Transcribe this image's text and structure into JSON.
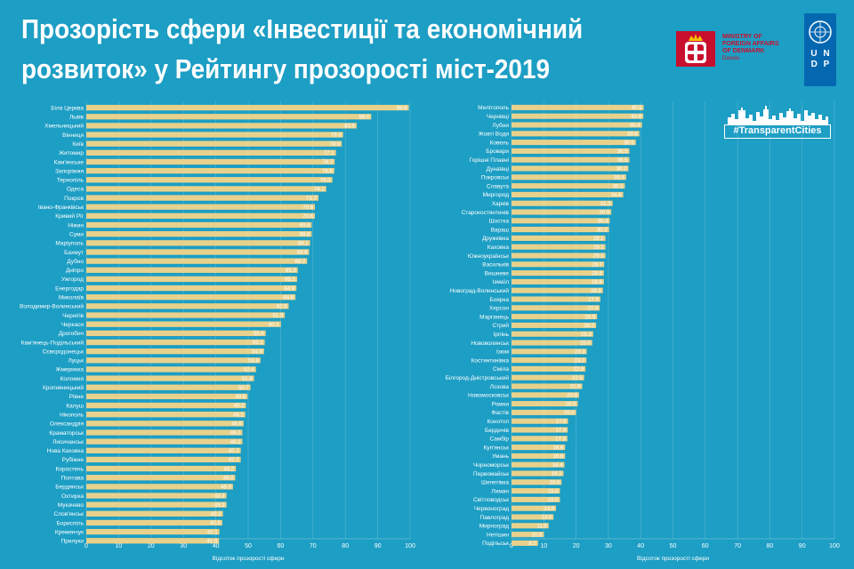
{
  "header": {
    "title_line1": "Прозорість сфери «Інвестиції та економічний",
    "title_line2": "розвиток» у Рейтингу прозорості міст-2019",
    "dk_line1": "MINISTRY OF",
    "dk_line2": "FOREIGN AFFAIRS",
    "dk_line3": "OF DENMARK",
    "dk_sub": "Danida",
    "undp_letters": "U N D P",
    "hashtag": "#TransparentCities"
  },
  "colors": {
    "bar": "#e8d18c",
    "background": "#1d9ec4",
    "text": "#ffffff",
    "dk_red": "#c8102e",
    "undp_blue": "#0468b1"
  },
  "chart_data": [
    {
      "type": "bar",
      "orientation": "horizontal",
      "xlabel": "Відсоток прозорості сфери",
      "xlim": [
        0,
        100
      ],
      "xticks": [
        0,
        10,
        20,
        30,
        40,
        50,
        60,
        70,
        80,
        90,
        100
      ],
      "categories": [
        "Біла Церква",
        "Львів",
        "Хмельницький",
        "Вінниця",
        "Київ",
        "Житомир",
        "Кам'янське",
        "Запоріжжя",
        "Тернопіль",
        "Одеса",
        "Покров",
        "Івано-Франківськ",
        "Кривий Ріг",
        "Ніжин",
        "Суми",
        "Маріуполь",
        "Бахмут",
        "Дубно",
        "Дніпро",
        "Ужгород",
        "Енергодар",
        "Миколаїв",
        "Володимир-Волинський",
        "Чернігів",
        "Черкаси",
        "Дрогобич",
        "Кам'янець-Подільський",
        "Сєвєродонецьк",
        "Луцьк",
        "Жмеринка",
        "Коломия",
        "Кропивницький",
        "Рівне",
        "Калуш",
        "Нікополь",
        "Олександрія",
        "Краматорськ",
        "Лисичанськ",
        "Нова Каховка",
        "Рубіжне",
        "Коростень",
        "Полтава",
        "Бердянськ",
        "Охтирка",
        "Мукачево",
        "Слов'янськ",
        "Бориспіль",
        "Кременчук",
        "Прилуки"
      ],
      "values": [
        99.6,
        88.0,
        83.5,
        79.3,
        78.9,
        77.1,
        76.7,
        76.6,
        76.0,
        74.1,
        71.7,
        70.6,
        70.6,
        69.6,
        69.6,
        69.1,
        68.8,
        68.2,
        65.3,
        65.1,
        64.9,
        64.6,
        62.5,
        61.3,
        60.1,
        55.4,
        55.1,
        54.9,
        53.8,
        52.4,
        51.8,
        50.7,
        49.8,
        49.3,
        49.1,
        48.6,
        48.2,
        48.2,
        47.7,
        47.7,
        46.2,
        46.0,
        45.3,
        43.3,
        43.3,
        42.2,
        42.0,
        41.1,
        41.0
      ]
    },
    {
      "type": "bar",
      "orientation": "horizontal",
      "xlabel": "Відсоток прозорості сфери",
      "xlim": [
        0,
        100
      ],
      "xticks": [
        0,
        10,
        20,
        30,
        40,
        50,
        60,
        70,
        80,
        90,
        100
      ],
      "categories": [
        "Мелітополь",
        "Чернівці",
        "Лубни",
        "Жовті Води",
        "Ковель",
        "Бровари",
        "Горішні Плавні",
        "Дунаївці",
        "Покровськ",
        "Славута",
        "Миргород",
        "Харків",
        "Старокостянтинів",
        "Шостка",
        "Вараш",
        "Дружківка",
        "Каховка",
        "Южноукраїнськ",
        "Васильків",
        "Вишневе",
        "Ізмаїл",
        "Новоград-Волинський",
        "Боярка",
        "Херсон",
        "Марганець",
        "Стрий",
        "Ірпінь",
        "Нововолинськ",
        "Ізюм",
        "Костянтинівка",
        "Сміла",
        "Білгород-Дністровський",
        "Лозова",
        "Новомосковськ",
        "Ромни",
        "Фастів",
        "Конотоп",
        "Бердичів",
        "Самбір",
        "Куп'янськ",
        "Умань",
        "Чорноморськ",
        "Первомайськ",
        "Шепетівка",
        "Лиман",
        "Світловодськ",
        "Червоноград",
        "Павлоград",
        "Мирноград",
        "Нетішин",
        "Подільськ"
      ],
      "values": [
        40.9,
        40.8,
        40.4,
        39.6,
        38.5,
        36.5,
        36.5,
        36.2,
        35.5,
        35.1,
        34.6,
        31.3,
        30.9,
        30.4,
        30.2,
        29.1,
        29.1,
        29.1,
        28.7,
        28.6,
        28.6,
        28.3,
        27.5,
        27.3,
        26.5,
        26.2,
        25.3,
        25.0,
        23.3,
        23.2,
        22.9,
        22.5,
        21.9,
        20.9,
        20.5,
        20.0,
        17.5,
        17.4,
        17.3,
        16.6,
        16.6,
        16.4,
        16.1,
        15.5,
        15.0,
        15.0,
        13.8,
        13.0,
        11.5,
        10.0,
        8.2
      ]
    }
  ]
}
